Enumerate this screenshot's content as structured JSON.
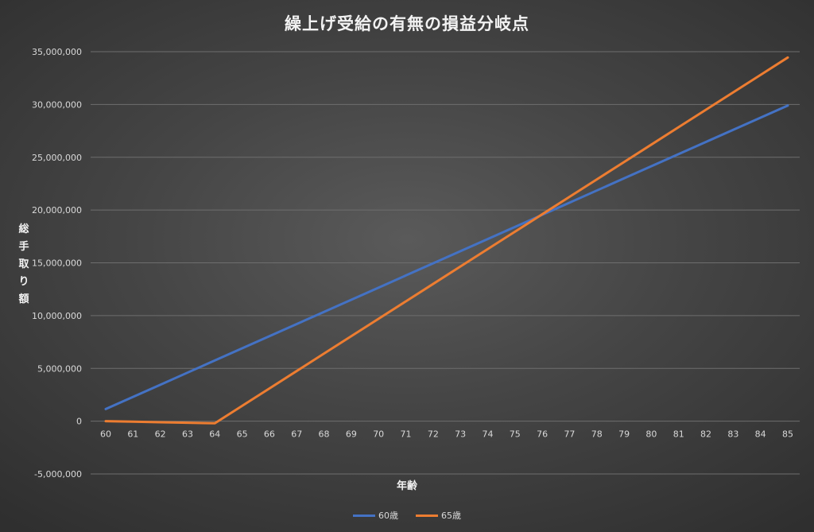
{
  "chart_data": {
    "type": "line",
    "title": "繰上げ受給の有無の損益分岐点",
    "xlabel": "年齢",
    "ylabel": "総手取り額",
    "x": [
      60,
      61,
      62,
      63,
      64,
      65,
      66,
      67,
      68,
      69,
      70,
      71,
      72,
      73,
      74,
      75,
      76,
      77,
      78,
      79,
      80,
      81,
      82,
      83,
      84,
      85
    ],
    "x_tick_labels": [
      "60",
      "61",
      "62",
      "63",
      "64",
      "65",
      "66",
      "67",
      "68",
      "69",
      "70",
      "71",
      "72",
      "73",
      "74",
      "75",
      "76",
      "77",
      "78",
      "79",
      "80",
      "81",
      "82",
      "83",
      "84",
      "85"
    ],
    "ylim": [
      -5000000,
      35000000
    ],
    "y_ticks": [
      -5000000,
      0,
      5000000,
      10000000,
      15000000,
      20000000,
      25000000,
      30000000,
      35000000
    ],
    "y_tick_labels": [
      "-5,000,000",
      "0",
      "5,000,000",
      "10,000,000",
      "15,000,000",
      "20,000,000",
      "25,000,000",
      "30,000,000",
      "35,000,000"
    ],
    "grid": true,
    "legend_position": "bottom",
    "series": [
      {
        "name": "60歳",
        "color": "#4472C4",
        "values": [
          1150000,
          2300000,
          3450000,
          4600000,
          5750000,
          6900000,
          8050000,
          9200000,
          10350000,
          11500000,
          12650000,
          13800000,
          14950000,
          16100000,
          17250000,
          18400000,
          19550000,
          20700000,
          21850000,
          23000000,
          24150000,
          25300000,
          26450000,
          27600000,
          28750000,
          29900000
        ]
      },
      {
        "name": "65歳",
        "color": "#ED7D31",
        "values": [
          0,
          -50000,
          -100000,
          -150000,
          -200000,
          1450000,
          3100000,
          4750000,
          6400000,
          8050000,
          9700000,
          11350000,
          13000000,
          14650000,
          16300000,
          17950000,
          19600000,
          21250000,
          22900000,
          24550000,
          26200000,
          27850000,
          29500000,
          31150000,
          32800000,
          34450000
        ]
      }
    ]
  }
}
